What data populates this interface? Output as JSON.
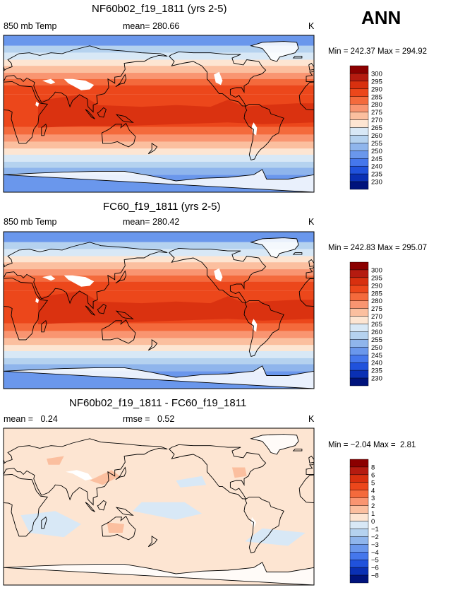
{
  "season": "ANN",
  "colors": {
    "land_mask": "#ffffff",
    "coast": "#000000",
    "frame": "#000000"
  },
  "abs_scale": {
    "levels": [
      "300",
      "295",
      "290",
      "285",
      "280",
      "275",
      "270",
      "265",
      "260",
      "255",
      "250",
      "245",
      "240",
      "235",
      "230"
    ],
    "colors": [
      "#8b0000",
      "#b51b10",
      "#d8300f",
      "#ec471b",
      "#f46a3c",
      "#f99571",
      "#fbbf9f",
      "#fde5d2",
      "#d8e8f6",
      "#b5d2ef",
      "#8fb5ec",
      "#6a97ec",
      "#4577ec",
      "#2052dc",
      "#0a30b4",
      "#00137c"
    ]
  },
  "diff_scale": {
    "levels": [
      "8",
      "6",
      "5",
      "4",
      "3",
      "2",
      "1",
      "0",
      "−1",
      "−2",
      "−3",
      "−4",
      "−5",
      "−6",
      "−8"
    ],
    "colors": [
      "#8b0000",
      "#b51b10",
      "#d8300f",
      "#ec471b",
      "#f46a3c",
      "#f99571",
      "#fbbf9f",
      "#fde5d2",
      "#d8e8f6",
      "#b5d2ef",
      "#8fb5ec",
      "#6a97ec",
      "#4577ec",
      "#2052dc",
      "#0a30b4",
      "#00137c"
    ]
  },
  "chart_data": [
    {
      "type": "heatmap",
      "title": "NF60b02_f19_1811 (yrs 2-5)",
      "variable": "850 mb Temp",
      "mean_label": "mean=",
      "mean": "280.66",
      "units": "K",
      "min_label": "Min =",
      "min": "242.37",
      "max_label": "Max =",
      "max": "294.92",
      "scale": "abs",
      "field": "abs"
    },
    {
      "type": "heatmap",
      "title": "FC60_f19_1811 (yrs 2-5)",
      "variable": "850 mb Temp",
      "mean_label": "mean=",
      "mean": "280.42",
      "units": "K",
      "min_label": "Min =",
      "min": "242.83",
      "max_label": "Max =",
      "max": "295.07",
      "scale": "abs",
      "field": "abs"
    },
    {
      "type": "heatmap",
      "title": "NF60b02_f19_1811 - FC60_f19_1811",
      "mean_label": "mean =",
      "mean": "0.24",
      "rmse_label": "rmse =",
      "rmse": "0.52",
      "units": "K",
      "min_label": "Min =",
      "min": "−2.04",
      "max_label": "Max =",
      "max": "2.81",
      "scale": "diff",
      "field": "diff"
    }
  ]
}
